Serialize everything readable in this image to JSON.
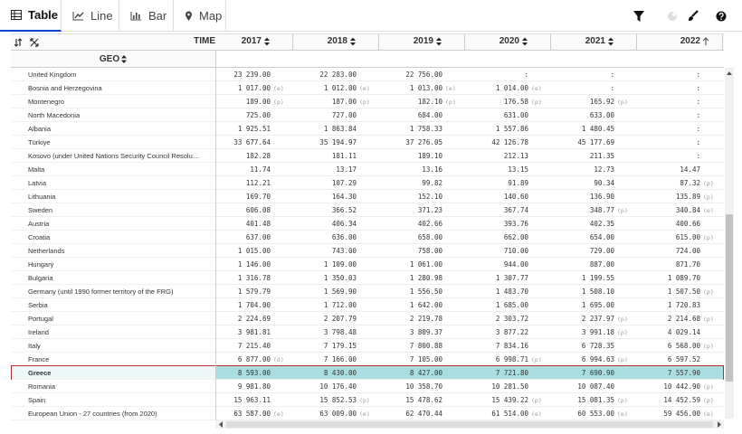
{
  "tabs": [
    "Table",
    "Line",
    "Bar",
    "Map"
  ],
  "table": {
    "time_label": "TIME",
    "geo_label": "GEO",
    "columns": [
      "2017",
      "2018",
      "2019",
      "2020",
      "2021",
      "2022"
    ],
    "rows": [
      {
        "geo": "United Kingdom",
        "cells": [
          {
            "value": "23 239.00"
          },
          {
            "value": "22 283.00"
          },
          {
            "value": "22 756.00"
          },
          {
            "value": ":"
          },
          {
            "value": ":"
          },
          {
            "value": ":"
          }
        ]
      },
      {
        "geo": "Bosnia and Herzegovina",
        "cells": [
          {
            "value": "1 017.00",
            "flag": "(e)"
          },
          {
            "value": "1 012.00",
            "flag": "(e)"
          },
          {
            "value": "1 013.00",
            "flag": "(e)"
          },
          {
            "value": "1 014.00",
            "flag": "(e)"
          },
          {
            "value": ":"
          },
          {
            "value": ":"
          }
        ]
      },
      {
        "geo": "Montenegro",
        "cells": [
          {
            "value": "189.00",
            "flag": "(p)"
          },
          {
            "value": "187.00",
            "flag": "(p)"
          },
          {
            "value": "182.10",
            "flag": "(p)"
          },
          {
            "value": "176.58",
            "flag": "(p)"
          },
          {
            "value": "165.92",
            "flag": "(p)"
          },
          {
            "value": ":"
          }
        ]
      },
      {
        "geo": "North Macedonia",
        "cells": [
          {
            "value": "725.00"
          },
          {
            "value": "727.00"
          },
          {
            "value": "684.00"
          },
          {
            "value": "631.00"
          },
          {
            "value": "633.00"
          },
          {
            "value": ":"
          }
        ]
      },
      {
        "geo": "Albania",
        "cells": [
          {
            "value": "1 925.51"
          },
          {
            "value": "1 863.84"
          },
          {
            "value": "1 758.33"
          },
          {
            "value": "1 557.86"
          },
          {
            "value": "1 480.45"
          },
          {
            "value": ":"
          }
        ]
      },
      {
        "geo": "Türkiye",
        "cells": [
          {
            "value": "33 677.64"
          },
          {
            "value": "35 194.97"
          },
          {
            "value": "37 276.05"
          },
          {
            "value": "42 126.78"
          },
          {
            "value": "45 177.69"
          },
          {
            "value": ":"
          }
        ]
      },
      {
        "geo": "Kosovo (under United Nations Security Council Resolu…",
        "cells": [
          {
            "value": "182.28"
          },
          {
            "value": "181.11"
          },
          {
            "value": "189.10"
          },
          {
            "value": "212.13"
          },
          {
            "value": "211.35"
          },
          {
            "value": ":"
          }
        ]
      },
      {
        "geo": "Malta",
        "cells": [
          {
            "value": "11.74"
          },
          {
            "value": "13.17"
          },
          {
            "value": "13.16"
          },
          {
            "value": "13.15"
          },
          {
            "value": "12.73"
          },
          {
            "value": "14.47"
          }
        ]
      },
      {
        "geo": "Latvia",
        "cells": [
          {
            "value": "112.21"
          },
          {
            "value": "107.29"
          },
          {
            "value": "99.82"
          },
          {
            "value": "91.89"
          },
          {
            "value": "90.34"
          },
          {
            "value": "87.32",
            "flag": "(p)"
          }
        ]
      },
      {
        "geo": "Lithuania",
        "cells": [
          {
            "value": "169.70"
          },
          {
            "value": "164.30"
          },
          {
            "value": "152.10"
          },
          {
            "value": "140.60"
          },
          {
            "value": "136.90"
          },
          {
            "value": "135.89",
            "flag": "(p)"
          }
        ]
      },
      {
        "geo": "Sweden",
        "cells": [
          {
            "value": "606.08"
          },
          {
            "value": "366.52"
          },
          {
            "value": "371.23"
          },
          {
            "value": "367.74"
          },
          {
            "value": "348.77",
            "flag": "(p)"
          },
          {
            "value": "340.84",
            "flag": "(e)"
          }
        ]
      },
      {
        "geo": "Austria",
        "cells": [
          {
            "value": "401.48"
          },
          {
            "value": "406.34"
          },
          {
            "value": "402.66"
          },
          {
            "value": "393.76"
          },
          {
            "value": "402.35"
          },
          {
            "value": "400.66"
          }
        ]
      },
      {
        "geo": "Croatia",
        "cells": [
          {
            "value": "637.00"
          },
          {
            "value": "636.00"
          },
          {
            "value": "658.00"
          },
          {
            "value": "662.00"
          },
          {
            "value": "654.00"
          },
          {
            "value": "615.00",
            "flag": "(p)"
          }
        ]
      },
      {
        "geo": "Netherlands",
        "cells": [
          {
            "value": "1 015.00"
          },
          {
            "value": "743.00"
          },
          {
            "value": "758.00"
          },
          {
            "value": "710.00"
          },
          {
            "value": "729.00"
          },
          {
            "value": "724.00"
          }
        ]
      },
      {
        "geo": "Hungary",
        "cells": [
          {
            "value": "1 146.00"
          },
          {
            "value": "1 109.00"
          },
          {
            "value": "1 061.00"
          },
          {
            "value": "944.00"
          },
          {
            "value": "887.00"
          },
          {
            "value": "871.70"
          }
        ]
      },
      {
        "geo": "Bulgaria",
        "cells": [
          {
            "value": "1 316.78"
          },
          {
            "value": "1 350.03"
          },
          {
            "value": "1 280.98"
          },
          {
            "value": "1 307.77"
          },
          {
            "value": "1 199.55"
          },
          {
            "value": "1 089.70"
          }
        ]
      },
      {
        "geo": "Germany (until 1990 former territory of the FRG)",
        "cells": [
          {
            "value": "1 579.79"
          },
          {
            "value": "1 569.90"
          },
          {
            "value": "1 556.50"
          },
          {
            "value": "1 483.70"
          },
          {
            "value": "1 508.10"
          },
          {
            "value": "1 507.50",
            "flag": "(p)"
          }
        ]
      },
      {
        "geo": "Serbia",
        "cells": [
          {
            "value": "1 704.00"
          },
          {
            "value": "1 712.00"
          },
          {
            "value": "1 642.00"
          },
          {
            "value": "1 685.00"
          },
          {
            "value": "1 695.00"
          },
          {
            "value": "1 720.83"
          }
        ]
      },
      {
        "geo": "Portugal",
        "cells": [
          {
            "value": "2 224.69"
          },
          {
            "value": "2 207.79"
          },
          {
            "value": "2 219.78"
          },
          {
            "value": "2 303.72"
          },
          {
            "value": "2 237.97",
            "flag": "(p)"
          },
          {
            "value": "2 214.68",
            "flag": "(p)"
          }
        ]
      },
      {
        "geo": "Ireland",
        "cells": [
          {
            "value": "3 981.81"
          },
          {
            "value": "3 798.48"
          },
          {
            "value": "3 809.37"
          },
          {
            "value": "3 877.22"
          },
          {
            "value": "3 991.18",
            "flag": "(p)"
          },
          {
            "value": "4 029.14"
          }
        ]
      },
      {
        "geo": "Italy",
        "cells": [
          {
            "value": "7 215.40"
          },
          {
            "value": "7 179.15"
          },
          {
            "value": "7 800.88"
          },
          {
            "value": "7 834.16"
          },
          {
            "value": "6 728.35"
          },
          {
            "value": "6 568.00",
            "flag": "(p)"
          }
        ]
      },
      {
        "geo": "France",
        "cells": [
          {
            "value": "6 877.00",
            "flag": "(d)"
          },
          {
            "value": "7 166.00"
          },
          {
            "value": "7 105.00"
          },
          {
            "value": "6 998.71",
            "flag": "(p)"
          },
          {
            "value": "6 994.63",
            "flag": "(p)"
          },
          {
            "value": "6 597.52"
          }
        ]
      },
      {
        "geo": "Greece",
        "selected": true,
        "cells": [
          {
            "value": "8 593.00"
          },
          {
            "value": "8 430.00"
          },
          {
            "value": "8 427.00"
          },
          {
            "value": "7 721.80"
          },
          {
            "value": "7 690.90"
          },
          {
            "value": "7 557.90"
          }
        ]
      },
      {
        "geo": "Romania",
        "cells": [
          {
            "value": "9 981.80"
          },
          {
            "value": "10 176.40"
          },
          {
            "value": "10 358.70"
          },
          {
            "value": "10 281.50"
          },
          {
            "value": "10 087.40"
          },
          {
            "value": "10 442.90",
            "flag": "(p)"
          }
        ]
      },
      {
        "geo": "Spain",
        "cells": [
          {
            "value": "15 963.11"
          },
          {
            "value": "15 852.53",
            "flag": "(p)"
          },
          {
            "value": "15 478.62"
          },
          {
            "value": "15 439.22",
            "flag": "(p)"
          },
          {
            "value": "15 081.35",
            "flag": "(p)"
          },
          {
            "value": "14 452.59",
            "flag": "(p)"
          }
        ]
      },
      {
        "geo": "European Union - 27 countries (from 2020)",
        "cells": [
          {
            "value": "63 587.00",
            "flag": "(e)"
          },
          {
            "value": "63 009.00",
            "flag": "(e)"
          },
          {
            "value": "62 470.44"
          },
          {
            "value": "61 514.00",
            "flag": "(e)"
          },
          {
            "value": "60 553.00",
            "flag": "(e)"
          },
          {
            "value": "59 456.00",
            "flag": "(e)"
          }
        ]
      }
    ]
  }
}
